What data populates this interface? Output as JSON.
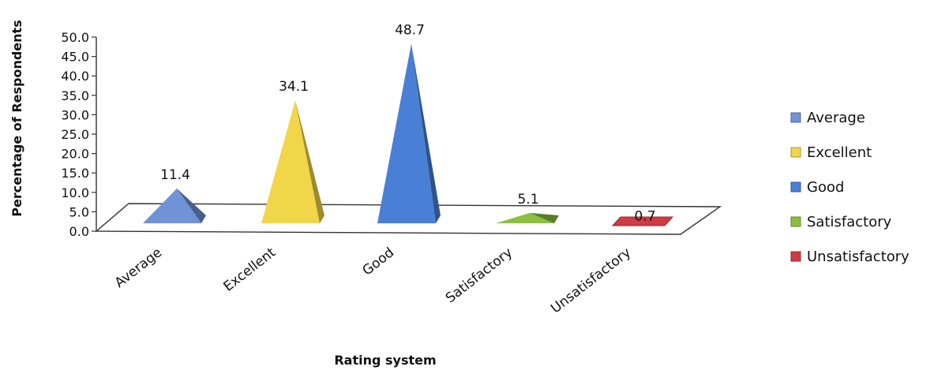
{
  "chart_data": {
    "type": "bar",
    "style": "3d-pyramid",
    "categories": [
      "Average",
      "Excellent",
      "Good",
      "Satisfactory",
      "Unsatisfactory"
    ],
    "values": [
      11.4,
      34.1,
      48.7,
      5.1,
      0.7
    ],
    "data_labels": [
      "11.4",
      "34.1",
      "48.7",
      "5.1",
      "0.7"
    ],
    "colors": [
      "#6f93d6",
      "#f1d64a",
      "#4a7fd6",
      "#8cbf3f",
      "#cf3b44"
    ],
    "title": "",
    "xlabel": "Rating system",
    "ylabel": "Percentage of Respondents",
    "ylim": [
      0,
      50
    ],
    "yticks": [
      "0.0",
      "5.0",
      "10.0",
      "15.0",
      "20.0",
      "25.0",
      "30.0",
      "35.0",
      "40.0",
      "45.0",
      "50.0"
    ],
    "grid": false,
    "legend": {
      "position": "right",
      "entries": [
        "Average",
        "Excellent",
        "Good",
        "Satisfactory",
        "Unsatisfactory"
      ]
    }
  }
}
